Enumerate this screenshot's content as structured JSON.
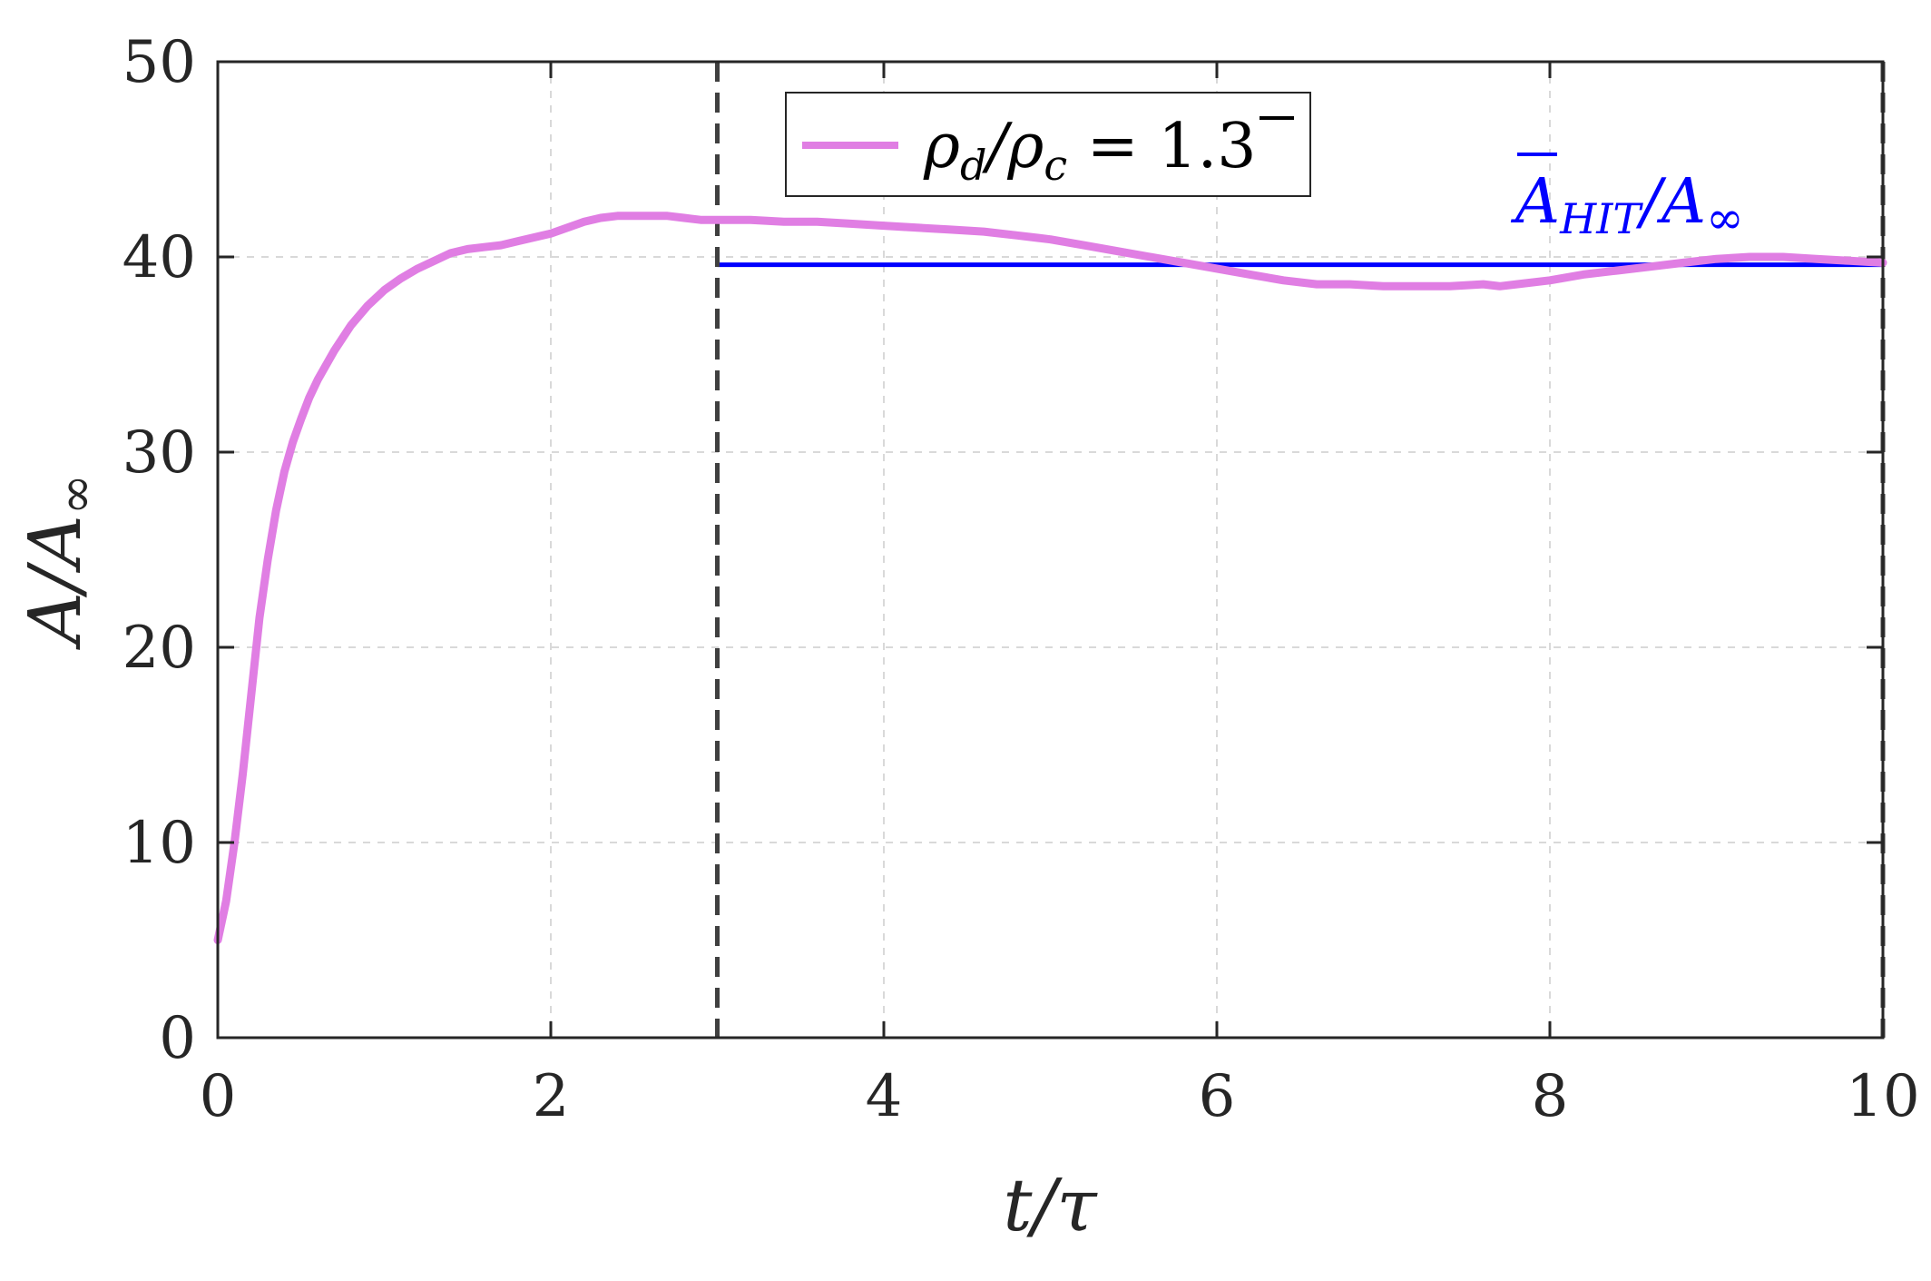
{
  "chart_data": {
    "type": "line",
    "xlabel": "t/τ",
    "ylabel": "A/A∞",
    "xlim": [
      0,
      10
    ],
    "ylim": [
      0,
      50
    ],
    "xticks": [
      0,
      2,
      4,
      6,
      8,
      10
    ],
    "yticks": [
      0,
      10,
      20,
      30,
      40,
      50
    ],
    "grid": true,
    "legend_position": "top-center",
    "series": [
      {
        "name": "ρd/ρc = 1.3̄",
        "color": "#e07ee3",
        "x": [
          0.0,
          0.05,
          0.1,
          0.15,
          0.2,
          0.25,
          0.3,
          0.35,
          0.4,
          0.45,
          0.5,
          0.55,
          0.6,
          0.7,
          0.8,
          0.9,
          1.0,
          1.1,
          1.2,
          1.3,
          1.4,
          1.5,
          1.6,
          1.7,
          1.8,
          1.9,
          2.0,
          2.1,
          2.2,
          2.3,
          2.4,
          2.5,
          2.6,
          2.7,
          2.8,
          2.9,
          3.0,
          3.2,
          3.4,
          3.6,
          3.8,
          4.0,
          4.2,
          4.4,
          4.6,
          4.8,
          5.0,
          5.2,
          5.4,
          5.6,
          5.8,
          6.0,
          6.2,
          6.4,
          6.6,
          6.8,
          7.0,
          7.2,
          7.4,
          7.6,
          7.7,
          7.8,
          8.0,
          8.2,
          8.4,
          8.6,
          8.8,
          9.0,
          9.2,
          9.4,
          9.6,
          9.8,
          10.0
        ],
        "y": [
          5.0,
          7.0,
          10.0,
          13.5,
          17.5,
          21.5,
          24.5,
          27.0,
          29.0,
          30.5,
          31.7,
          32.8,
          33.7,
          35.2,
          36.5,
          37.5,
          38.3,
          38.9,
          39.4,
          39.8,
          40.2,
          40.4,
          40.5,
          40.6,
          40.8,
          41.0,
          41.2,
          41.5,
          41.8,
          42.0,
          42.1,
          42.1,
          42.1,
          42.1,
          42.0,
          41.9,
          41.9,
          41.9,
          41.8,
          41.8,
          41.7,
          41.6,
          41.5,
          41.4,
          41.3,
          41.1,
          40.9,
          40.6,
          40.3,
          40.0,
          39.7,
          39.4,
          39.1,
          38.8,
          38.6,
          38.6,
          38.5,
          38.5,
          38.5,
          38.6,
          38.5,
          38.6,
          38.8,
          39.1,
          39.3,
          39.5,
          39.7,
          39.9,
          40.0,
          40.0,
          39.9,
          39.8,
          39.7
        ]
      }
    ],
    "vlines": [
      {
        "x": 3,
        "color": "#404040",
        "style": "dashed"
      },
      {
        "x": 10,
        "color": "#404040",
        "style": "dashed"
      }
    ],
    "hlines": [
      {
        "y": 39.6,
        "x_start": 3,
        "x_end": 10,
        "color": "#0000ff"
      }
    ],
    "annotation": {
      "text": "A̅HIT/A∞",
      "color": "#0000ff"
    }
  },
  "labels": {
    "xlabel_main": "t/τ",
    "ylabel_main": "A/A",
    "ylabel_sub": "∞",
    "legend_rho_d": "ρ",
    "legend_sub_d": "d",
    "legend_mid": "/ρ",
    "legend_sub_c": "c",
    "legend_eq": " = 1.",
    "legend_repeat": "3",
    "annot_A": "A",
    "annot_sub": "HIT",
    "annot_rest": "/A",
    "annot_inf": "∞"
  }
}
